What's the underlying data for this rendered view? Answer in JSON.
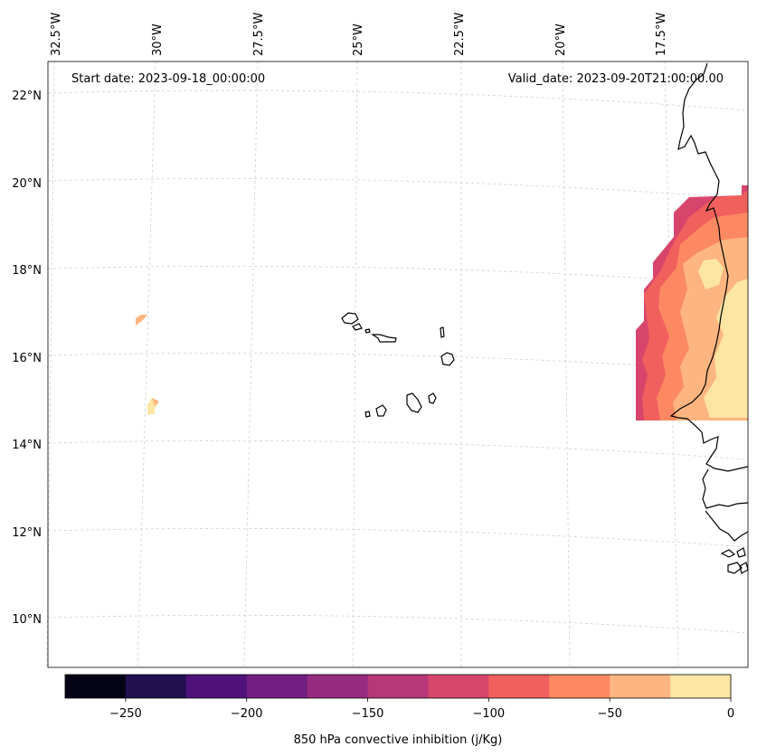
{
  "header": {
    "start_date": "Start date: 2023-09-18_00:00:00",
    "valid_date": "Valid_date: 2023-09-20T21:00:00.00"
  },
  "longitude_labels": [
    "32.5°W",
    "30°W",
    "27.5°W",
    "25°W",
    "22.5°W",
    "20°W",
    "17.5°W"
  ],
  "latitude_labels": [
    "22°N",
    "20°N",
    "18°N",
    "16°N",
    "14°N",
    "12°N",
    "10°N"
  ],
  "colorbar": {
    "label": "850 hPa convective inhibition (j/Kg)",
    "tick_labels": [
      "−250",
      "−200",
      "−150",
      "−100",
      "−50",
      "0"
    ],
    "range": [
      -275,
      0
    ],
    "step": 25,
    "colors": [
      "#050417",
      "#221150",
      "#4f127b",
      "#721f81",
      "#952c80",
      "#b73779",
      "#d8456c",
      "#f1605d",
      "#fc8961",
      "#feb57f",
      "#fde5a4"
    ]
  }
}
